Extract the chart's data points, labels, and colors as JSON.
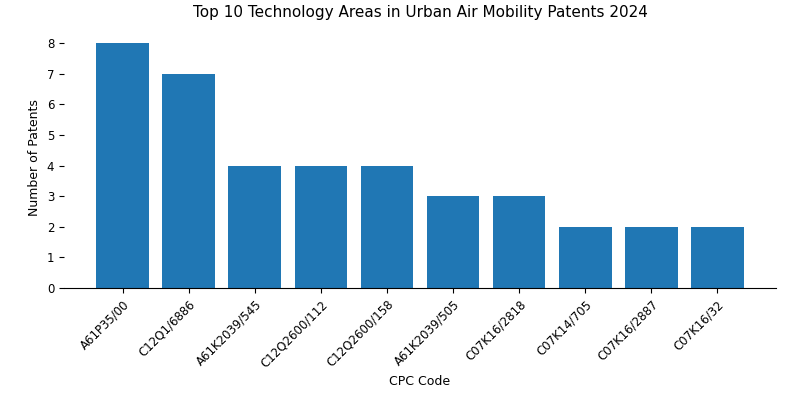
{
  "title": "Top 10 Technology Areas in Urban Air Mobility Patents 2024",
  "xlabel": "CPC Code",
  "ylabel": "Number of Patents",
  "categories": [
    "A61P35/00",
    "C12Q1/6886",
    "A61K2039/545",
    "C12Q2600/112",
    "C12Q2600/158",
    "A61K2039/505",
    "C07K16/2818",
    "C07K14/705",
    "C07K16/2887",
    "C07K16/32"
  ],
  "values": [
    8,
    7,
    4,
    4,
    4,
    3,
    3,
    2,
    2,
    2
  ],
  "bar_color": "#2077b4",
  "ylim": [
    0,
    8.5
  ],
  "yticks": [
    0,
    1,
    2,
    3,
    4,
    5,
    6,
    7,
    8
  ],
  "figsize": [
    8.0,
    4.0
  ],
  "dpi": 100,
  "title_fontsize": 11,
  "label_fontsize": 9,
  "tick_fontsize": 8.5
}
